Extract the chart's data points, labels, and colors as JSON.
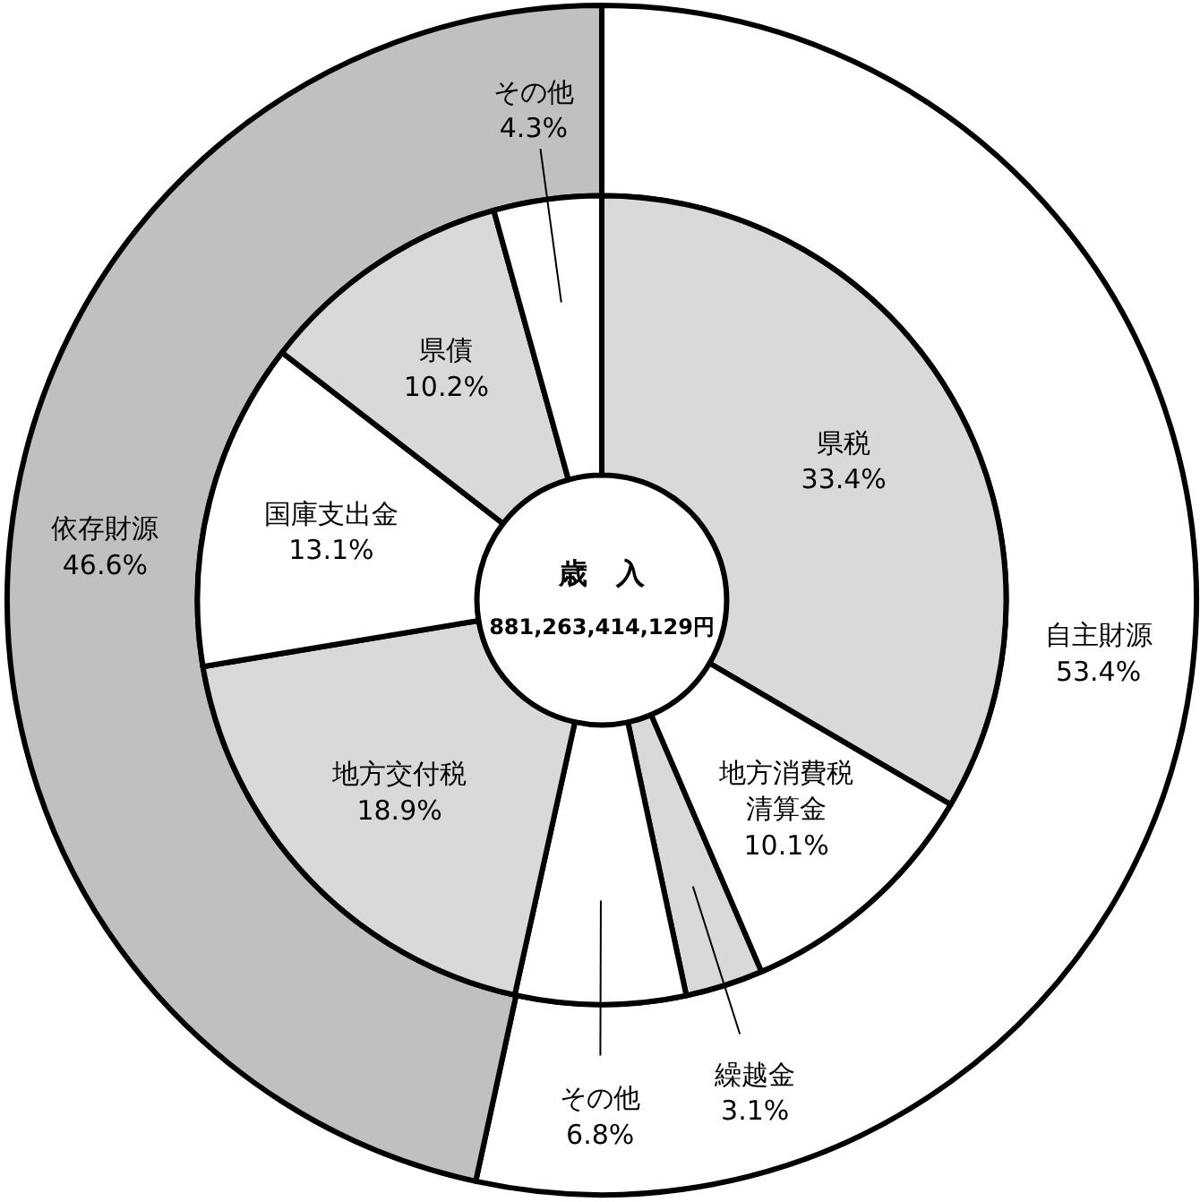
{
  "chart_data": [
    {
      "type": "donut",
      "categories": [
        "自主財源",
        "依存財源"
      ],
      "values": [
        53.4,
        46.6
      ],
      "colors": [
        "#ffffff",
        "#c0c0c0"
      ],
      "value_labels": [
        "53.4%",
        "46.6%"
      ]
    },
    {
      "type": "donut",
      "title": "歳　入",
      "subtitle": "881,263,414,129円",
      "categories": [
        "県税",
        "地方消費税清算金",
        "繰越金",
        "その他",
        "地方交付税",
        "国庫支出金",
        "県債",
        "その他"
      ],
      "values": [
        33.4,
        10.1,
        3.1,
        6.8,
        18.9,
        13.1,
        10.2,
        4.3
      ],
      "colors": [
        "#d9d9d9",
        "#ffffff",
        "#d9d9d9",
        "#ffffff",
        "#d9d9d9",
        "#ffffff",
        "#d9d9d9",
        "#ffffff"
      ],
      "value_labels": [
        "33.4%",
        "10.1%",
        "3.1%",
        "6.8%",
        "18.9%",
        "13.1%",
        "10.2%",
        "4.3%"
      ]
    }
  ]
}
